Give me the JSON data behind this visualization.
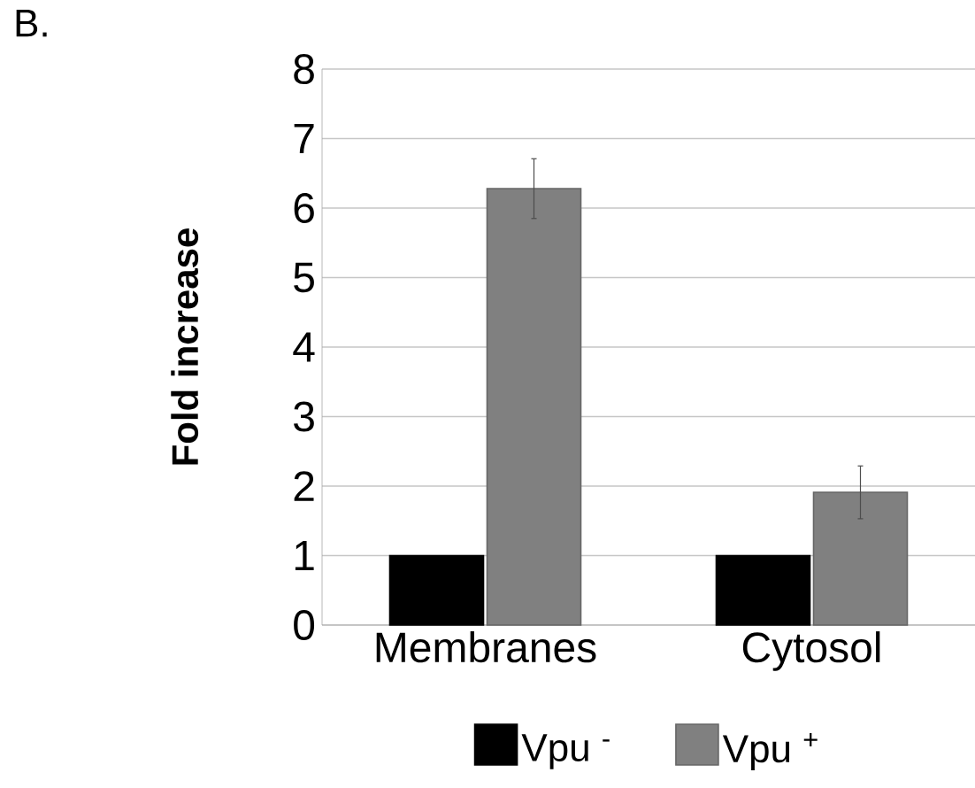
{
  "chart_data": {
    "type": "bar",
    "annotations": [
      "B."
    ],
    "ylabel": "Fold increase",
    "categories": [
      "Membranes",
      "Cytosol"
    ],
    "series": [
      {
        "name": "Vpu $^{-}$",
        "color": "#000000",
        "values": [
          1,
          1
        ]
      },
      {
        "name": "Vpu $^{+}$",
        "color": "#808080",
        "values": [
          6.28,
          1.91
        ],
        "errors": [
          0.43,
          0.38
        ]
      }
    ],
    "ylim": [
      0,
      8
    ],
    "yticks": [
      0,
      1,
      2,
      3,
      4,
      5,
      6,
      7,
      8
    ],
    "grid": "y",
    "legend": "bottom"
  }
}
